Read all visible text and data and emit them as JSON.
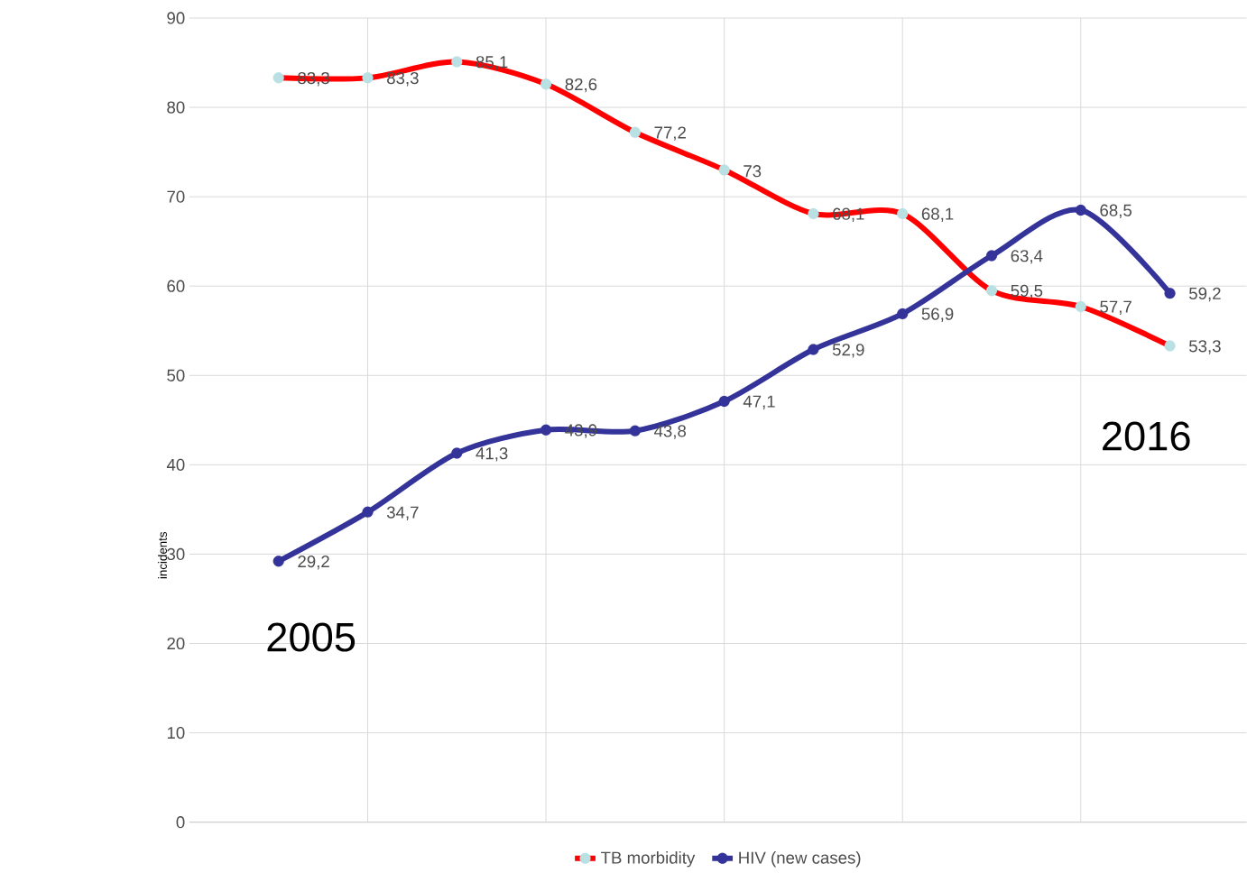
{
  "chart_data": {
    "type": "line",
    "ylabel": "incidents",
    "categories": [
      null,
      null,
      null,
      null,
      null,
      null,
      null,
      null,
      null,
      null,
      null
    ],
    "series": [
      {
        "name": "TB morbidity",
        "color": "#ff0000",
        "values": [
          83.3,
          83.3,
          85.1,
          82.6,
          77.2,
          73,
          68.1,
          68.1,
          59.5,
          57.7,
          53.3
        ],
        "value_labels": [
          "83,3",
          "83,3",
          "85,1",
          "82,6",
          "77,2",
          "73",
          "68,1",
          "68,1",
          "59,5",
          "57,7",
          "53,3"
        ]
      },
      {
        "name": "HIV (new cases)",
        "color": "#333399",
        "values": [
          29.2,
          34.7,
          41.3,
          43.9,
          43.8,
          47.1,
          52.9,
          56.9,
          63.4,
          68.5,
          59.2
        ],
        "value_labels": [
          "29,2",
          "34,7",
          "41,3",
          "43,9",
          "43,8",
          "47,1",
          "52,9",
          "56,9",
          "63,4",
          "68,5",
          "59,2"
        ]
      }
    ],
    "annotations": [
      "2005",
      "2016"
    ],
    "ylim": [
      0,
      90
    ],
    "yticks": [
      0,
      10,
      20,
      30,
      40,
      50,
      60,
      70,
      80,
      90
    ],
    "grid": true,
    "legend": "bottom",
    "marker": "circle",
    "line_style": "solid"
  }
}
